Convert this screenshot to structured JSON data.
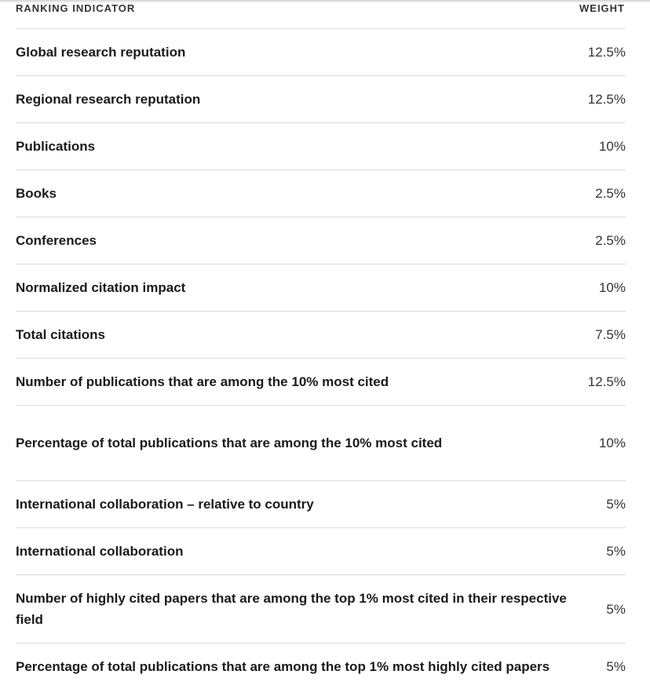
{
  "table": {
    "header": {
      "indicator": "RANKING INDICATOR",
      "weight": "WEIGHT"
    },
    "rows": [
      {
        "indicator": "Global research reputation",
        "weight": "12.5%"
      },
      {
        "indicator": "Regional research reputation",
        "weight": "12.5%"
      },
      {
        "indicator": "Publications",
        "weight": "10%"
      },
      {
        "indicator": "Books",
        "weight": "2.5%"
      },
      {
        "indicator": "Conferences",
        "weight": "2.5%"
      },
      {
        "indicator": "Normalized citation impact",
        "weight": "10%"
      },
      {
        "indicator": "Total citations",
        "weight": "7.5%"
      },
      {
        "indicator": "Number of publications that are among the 10% most cited",
        "weight": "12.5%"
      },
      {
        "indicator": "Percentage of total publications that are among the 10% most cited",
        "weight": "10%"
      },
      {
        "indicator": "International collaboration – relative to country",
        "weight": "5%"
      },
      {
        "indicator": "International collaboration",
        "weight": "5%"
      },
      {
        "indicator": "Number of highly cited papers that are among the top 1% most cited in their respective field",
        "weight": "5%"
      },
      {
        "indicator": "Percentage of total publications that are among the top 1% most highly cited papers",
        "weight": "5%"
      }
    ]
  }
}
